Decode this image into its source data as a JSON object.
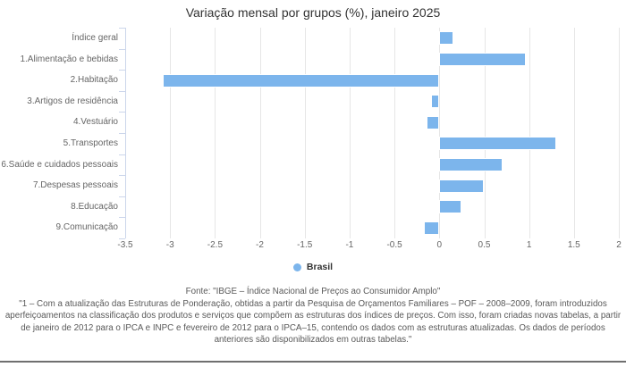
{
  "title": "Variação mensal por grupos (%), janeiro 2025",
  "legend": {
    "label": "Brasil",
    "marker_color": "#7cb5ec"
  },
  "footer": {
    "fonte": "Fonte: \"IBGE – Índice Nacional de Preços ao Consumidor Amplo\"",
    "nota": "\"1 – Com a atualização das Estruturas de Ponderação, obtidas a partir da Pesquisa de Orçamentos Familiares – POF – 2008–2009, foram introduzidos aperfeiçoamentos na classificação dos produtos e serviços que compõem as estruturas dos índices de preços. Com isso, foram criadas novas tabelas, a partir de janeiro de 2012 para o IPCA e INPC e fevereiro de 2012 para o IPCA–15, contendo os dados com as estruturas atualizadas. Os dados de períodos anteriores são disponibilizados em outras tabelas.\""
  },
  "colors": {
    "bar": "#7cb5ec",
    "grid": "#e6e6e6",
    "axis_line": "#ccd6eb",
    "title_text": "#333333",
    "label_text": "#666666",
    "footer_text": "#595959",
    "divider": "#6f6f6f"
  },
  "chart_data": {
    "type": "bar",
    "orientation": "horizontal",
    "title": "Variação mensal por grupos (%), janeiro 2025",
    "categories": [
      "Índice geral",
      "1.Alimentação e bebidas",
      "2.Habitação",
      "3.Artigos de residência",
      "4.Vestuário",
      "5.Transportes",
      "6.Saúde e cuidados pessoais",
      "7.Despesas pessoais",
      "8.Educação",
      "9.Comunicação"
    ],
    "series": [
      {
        "name": "Brasil",
        "color": "#7cb5ec",
        "values": [
          0.16,
          0.96,
          -3.08,
          -0.09,
          -0.14,
          1.3,
          0.7,
          0.5,
          0.25,
          -0.17
        ]
      }
    ],
    "xlabel": "",
    "ylabel": "",
    "xlim": [
      -3.5,
      2
    ],
    "xticks": [
      -3.5,
      -3,
      -2.5,
      -2,
      -1.5,
      -1,
      -0.5,
      0,
      0.5,
      1,
      1.5,
      2
    ],
    "grid": true,
    "legend_position": "bottom"
  }
}
